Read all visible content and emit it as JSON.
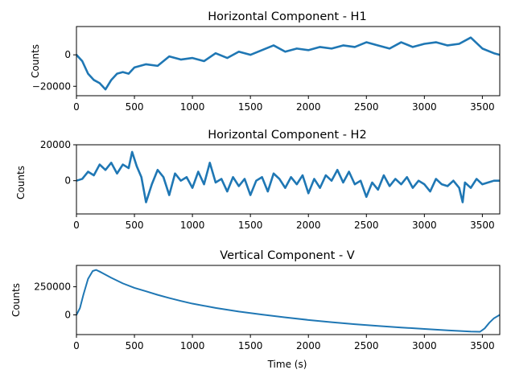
{
  "chart_data": [
    {
      "type": "line",
      "title": "Horizontal Component - H1",
      "xlabel": "",
      "ylabel": "Counts",
      "xlim": [
        0,
        3650
      ],
      "ylim": [
        -26000,
        18000
      ],
      "xticks": [
        0,
        500,
        1000,
        1500,
        2000,
        2500,
        3000,
        3500
      ],
      "xtick_labels": [
        "0",
        "500",
        "1000",
        "1500",
        "2000",
        "2500",
        "3000",
        "3500"
      ],
      "yticks": [
        -20000,
        0
      ],
      "ytick_labels": [
        "−20000",
        "0"
      ],
      "color": "#1f77b4",
      "series": [
        {
          "x": [
            0,
            50,
            100,
            150,
            200,
            250,
            300,
            350,
            400,
            450,
            500,
            600,
            700,
            800,
            900,
            1000,
            1100,
            1200,
            1300,
            1400,
            1500,
            1600,
            1700,
            1800,
            1900,
            2000,
            2100,
            2200,
            2300,
            2400,
            2500,
            2600,
            2700,
            2800,
            2900,
            3000,
            3100,
            3200,
            3300,
            3400,
            3500,
            3600,
            3650
          ],
          "y": [
            0,
            -4000,
            -12000,
            -16000,
            -18000,
            -22000,
            -16000,
            -12000,
            -11000,
            -12000,
            -8000,
            -6000,
            -7000,
            -1000,
            -3000,
            -2000,
            -4000,
            1000,
            -2000,
            2000,
            0,
            3000,
            6000,
            2000,
            4000,
            3000,
            5000,
            4000,
            6000,
            5000,
            8000,
            6000,
            4000,
            8000,
            5000,
            7000,
            8000,
            6000,
            7000,
            11000,
            4000,
            1000,
            0
          ]
        }
      ]
    },
    {
      "type": "line",
      "title": "Horizontal Component - H2",
      "xlabel": "",
      "ylabel": "Counts",
      "xlim": [
        0,
        3650
      ],
      "ylim": [
        -18500,
        20000
      ],
      "xticks": [
        0,
        500,
        1000,
        1500,
        2000,
        2500,
        3000,
        3500
      ],
      "xtick_labels": [
        "0",
        "500",
        "1000",
        "1500",
        "2000",
        "2500",
        "3000",
        "3500"
      ],
      "yticks": [
        0,
        20000
      ],
      "ytick_labels": [
        "0",
        "20000"
      ],
      "color": "#1f77b4",
      "series": [
        {
          "x": [
            0,
            50,
            100,
            150,
            200,
            250,
            300,
            350,
            400,
            450,
            480,
            520,
            560,
            600,
            650,
            700,
            750,
            800,
            850,
            900,
            950,
            1000,
            1050,
            1100,
            1150,
            1200,
            1250,
            1300,
            1350,
            1400,
            1450,
            1500,
            1550,
            1600,
            1650,
            1700,
            1750,
            1800,
            1850,
            1900,
            1950,
            2000,
            2050,
            2100,
            2150,
            2200,
            2250,
            2300,
            2350,
            2400,
            2450,
            2500,
            2550,
            2600,
            2650,
            2700,
            2750,
            2800,
            2850,
            2900,
            2950,
            3000,
            3050,
            3100,
            3150,
            3200,
            3250,
            3300,
            3330,
            3350,
            3400,
            3450,
            3500,
            3550,
            3600,
            3650
          ],
          "y": [
            0,
            1000,
            5000,
            3000,
            9000,
            6000,
            10000,
            4000,
            9000,
            7000,
            16000,
            8000,
            2000,
            -12000,
            -2000,
            6000,
            2000,
            -8000,
            4000,
            0,
            2000,
            -4000,
            5000,
            -2000,
            10000,
            -1000,
            1000,
            -6000,
            2000,
            -3000,
            1000,
            -8000,
            0,
            2000,
            -6000,
            4000,
            1000,
            -4000,
            2000,
            -2000,
            3000,
            -7000,
            1000,
            -4000,
            3000,
            0,
            6000,
            -1000,
            5000,
            -2000,
            0,
            -9000,
            -1000,
            -5000,
            3000,
            -3000,
            1000,
            -2000,
            2000,
            -4000,
            0,
            -2000,
            -6000,
            1000,
            -2000,
            -3000,
            0,
            -4000,
            -12000,
            -1000,
            -4000,
            1000,
            -2000,
            -1000,
            0,
            0
          ]
        }
      ]
    },
    {
      "type": "line",
      "title": "Vertical Component - V",
      "xlabel": "Time (s)",
      "ylabel": "Counts",
      "xlim": [
        0,
        3650
      ],
      "ylim": [
        -175000,
        440000
      ],
      "xticks": [
        0,
        500,
        1000,
        1500,
        2000,
        2500,
        3000,
        3500
      ],
      "xtick_labels": [
        "0",
        "500",
        "1000",
        "1500",
        "2000",
        "2500",
        "3000",
        "3500"
      ],
      "yticks": [
        0,
        250000
      ],
      "ytick_labels": [
        "0",
        "250000"
      ],
      "color": "#1f77b4",
      "series": [
        {
          "x": [
            0,
            30,
            60,
            100,
            140,
            170,
            200,
            300,
            400,
            500,
            600,
            700,
            800,
            900,
            1000,
            1200,
            1400,
            1600,
            1800,
            2000,
            2200,
            2400,
            2600,
            2800,
            3000,
            3200,
            3400,
            3480,
            3520,
            3560,
            3600,
            3650
          ],
          "y": [
            0,
            60000,
            180000,
            320000,
            390000,
            400000,
            385000,
            330000,
            280000,
            240000,
            210000,
            178000,
            150000,
            124000,
            100000,
            62000,
            30000,
            3000,
            -22000,
            -45000,
            -65000,
            -83000,
            -98000,
            -112000,
            -125000,
            -137000,
            -148000,
            -150000,
            -120000,
            -70000,
            -30000,
            0
          ]
        }
      ]
    }
  ]
}
